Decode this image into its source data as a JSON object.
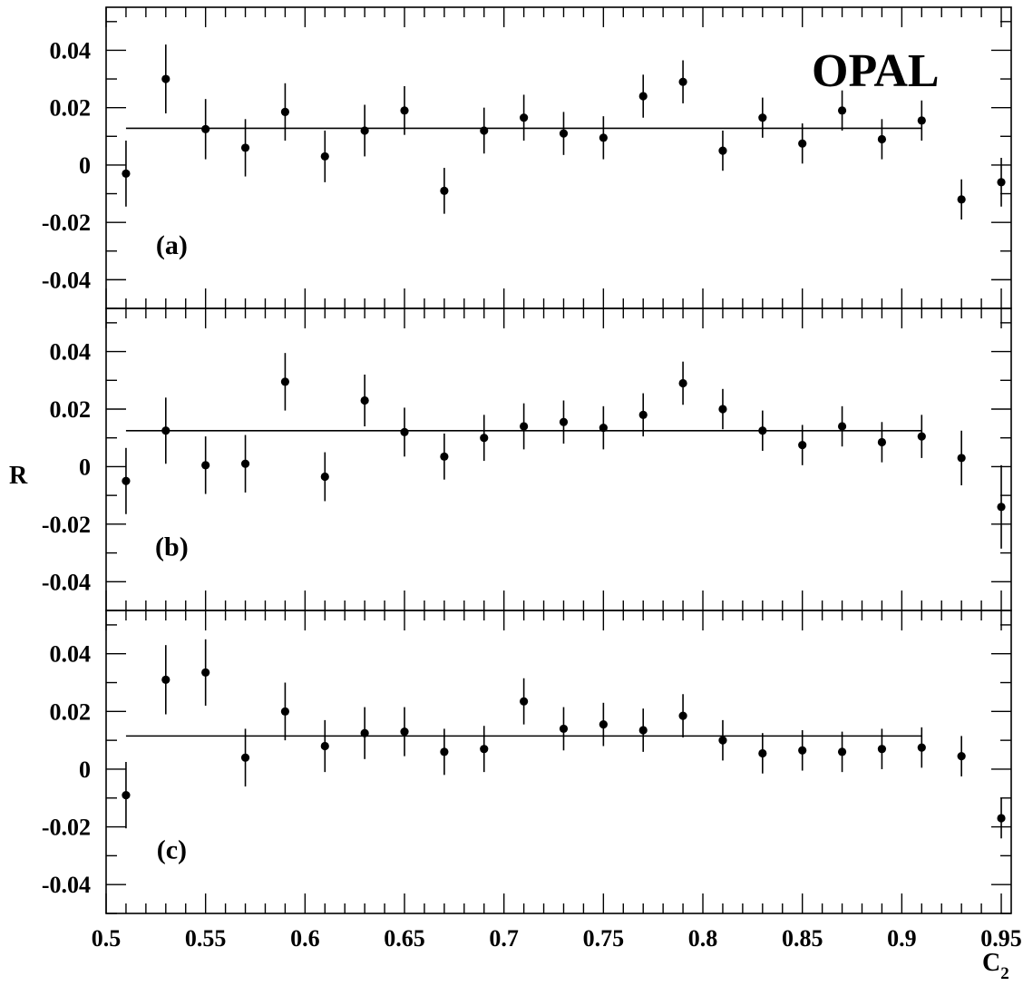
{
  "figure": {
    "experiment_label": "OPAL",
    "y_axis_label": "R",
    "x_axis_label_main": "C",
    "x_axis_label_sub": "2"
  },
  "chart_data": [
    {
      "type": "scatter",
      "panel_label": "(a)",
      "xlim": [
        0.5,
        0.955
      ],
      "ylim": [
        -0.05,
        0.055
      ],
      "x_ticks": [
        0.5,
        0.55,
        0.6,
        0.65,
        0.7,
        0.75,
        0.8,
        0.85,
        0.9,
        0.95
      ],
      "x_tick_labels": [
        "0.5",
        "0.55",
        "0.6",
        "0.65",
        "0.7",
        "0.75",
        "0.8",
        "0.85",
        "0.9",
        "0.95"
      ],
      "y_ticks": [
        0.04,
        0.02,
        0,
        -0.02,
        -0.04
      ],
      "y_tick_labels": [
        "0.04",
        "0.02",
        "0",
        "-0.02",
        "-0.04"
      ],
      "x": [
        0.51,
        0.53,
        0.55,
        0.57,
        0.59,
        0.61,
        0.63,
        0.65,
        0.67,
        0.69,
        0.71,
        0.73,
        0.75,
        0.77,
        0.79,
        0.81,
        0.83,
        0.85,
        0.87,
        0.89,
        0.91,
        0.93,
        0.95
      ],
      "y": [
        -0.003,
        0.03,
        0.0125,
        0.006,
        0.0185,
        0.003,
        0.012,
        0.019,
        -0.009,
        0.012,
        0.0165,
        0.011,
        0.0095,
        0.024,
        0.029,
        0.005,
        0.0165,
        0.0075,
        0.019,
        0.009,
        0.0155,
        -0.012,
        -0.006
      ],
      "y_err": [
        0.0115,
        0.012,
        0.0105,
        0.01,
        0.01,
        0.009,
        0.009,
        0.0085,
        0.008,
        0.008,
        0.008,
        0.0075,
        0.0075,
        0.0075,
        0.0075,
        0.007,
        0.007,
        0.007,
        0.007,
        0.007,
        0.007,
        0.007,
        0.0085
      ],
      "fit": {
        "x_start": 0.51,
        "x_end": 0.91,
        "value": 0.0128
      }
    },
    {
      "type": "scatter",
      "panel_label": "(b)",
      "xlim": [
        0.5,
        0.955
      ],
      "ylim": [
        -0.05,
        0.055
      ],
      "x_ticks": [
        0.5,
        0.55,
        0.6,
        0.65,
        0.7,
        0.75,
        0.8,
        0.85,
        0.9,
        0.95
      ],
      "x_tick_labels": [
        "0.5",
        "0.55",
        "0.6",
        "0.65",
        "0.7",
        "0.75",
        "0.8",
        "0.85",
        "0.9",
        "0.95"
      ],
      "y_ticks": [
        0.04,
        0.02,
        0,
        -0.02,
        -0.04
      ],
      "y_tick_labels": [
        "0.04",
        "0.02",
        "0",
        "-0.02",
        "-0.04"
      ],
      "x": [
        0.51,
        0.53,
        0.55,
        0.57,
        0.59,
        0.61,
        0.63,
        0.65,
        0.67,
        0.69,
        0.71,
        0.73,
        0.75,
        0.77,
        0.79,
        0.81,
        0.83,
        0.85,
        0.87,
        0.89,
        0.91,
        0.93,
        0.95
      ],
      "y": [
        -0.005,
        0.0125,
        0.0005,
        0.001,
        0.0295,
        -0.0035,
        0.023,
        0.012,
        0.0035,
        0.01,
        0.014,
        0.0155,
        0.0135,
        0.018,
        0.029,
        0.02,
        0.0125,
        0.0075,
        0.014,
        0.0085,
        0.0105,
        0.003,
        -0.014
      ],
      "y_err": [
        0.0115,
        0.0115,
        0.01,
        0.01,
        0.01,
        0.0085,
        0.009,
        0.0085,
        0.008,
        0.008,
        0.008,
        0.0075,
        0.0075,
        0.0075,
        0.0075,
        0.007,
        0.007,
        0.007,
        0.007,
        0.007,
        0.0075,
        0.0095,
        0.0145
      ],
      "fit": {
        "x_start": 0.51,
        "x_end": 0.91,
        "value": 0.0125
      }
    },
    {
      "type": "scatter",
      "panel_label": "(c)",
      "xlim": [
        0.5,
        0.955
      ],
      "ylim": [
        -0.05,
        0.055
      ],
      "x_ticks": [
        0.5,
        0.55,
        0.6,
        0.65,
        0.7,
        0.75,
        0.8,
        0.85,
        0.9,
        0.95
      ],
      "x_tick_labels": [
        "0.5",
        "0.55",
        "0.6",
        "0.65",
        "0.7",
        "0.75",
        "0.8",
        "0.85",
        "0.9",
        "0.95"
      ],
      "y_ticks": [
        0.04,
        0.02,
        0,
        -0.02,
        -0.04
      ],
      "y_tick_labels": [
        "0.04",
        "0.02",
        "0",
        "-0.02",
        "-0.04"
      ],
      "x": [
        0.51,
        0.53,
        0.55,
        0.57,
        0.59,
        0.61,
        0.63,
        0.65,
        0.67,
        0.69,
        0.71,
        0.73,
        0.75,
        0.77,
        0.79,
        0.81,
        0.83,
        0.85,
        0.87,
        0.89,
        0.91,
        0.93,
        0.95
      ],
      "y": [
        -0.009,
        0.031,
        0.0335,
        0.004,
        0.02,
        0.008,
        0.0125,
        0.013,
        0.006,
        0.007,
        0.0235,
        0.014,
        0.0155,
        0.0135,
        0.0185,
        0.01,
        0.0055,
        0.0065,
        0.006,
        0.007,
        0.0075,
        0.0045,
        -0.017
      ],
      "y_err": [
        0.0115,
        0.012,
        0.0115,
        0.01,
        0.01,
        0.009,
        0.009,
        0.0085,
        0.008,
        0.008,
        0.008,
        0.0075,
        0.0075,
        0.0075,
        0.0075,
        0.007,
        0.007,
        0.007,
        0.007,
        0.007,
        0.007,
        0.007,
        0.007
      ],
      "fit": {
        "x_start": 0.51,
        "x_end": 0.91,
        "value": 0.0115
      }
    }
  ]
}
